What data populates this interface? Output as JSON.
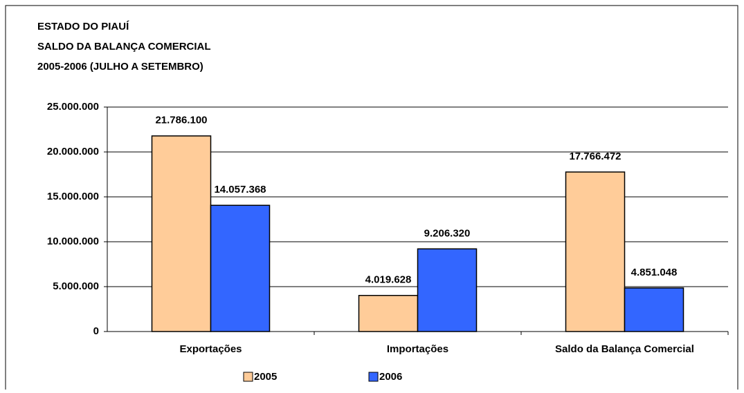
{
  "chart_data": {
    "type": "bar",
    "title": [
      "ESTADO DO PIAUÍ",
      "SALDO DA BALANÇA COMERCIAL",
      "2005-2006 (JULHO A SETEMBRO)"
    ],
    "categories": [
      "Exportações",
      "Importações",
      "Saldo da Balança Comercial"
    ],
    "series": [
      {
        "name": "2005",
        "color": "#ffcc99",
        "values": [
          21786100,
          4019628,
          17766472
        ],
        "value_labels": [
          "21.786.100",
          "4.019.628",
          "17.766.472"
        ]
      },
      {
        "name": "2006",
        "color": "#3366ff",
        "values": [
          14057368,
          9206320,
          4851048
        ],
        "value_labels": [
          "14.057.368",
          "9.206.320",
          "4.851.048"
        ]
      }
    ],
    "ylim": [
      0,
      25000000
    ],
    "yticks": [
      0,
      {
        "value": 5000000,
        "label": "5.000.000"
      },
      {
        "value": 10000000,
        "label": "10.000.000"
      },
      {
        "value": 15000000,
        "label": "15.000.000"
      },
      {
        "value": 20000000,
        "label": "20.000.000"
      },
      {
        "value": 25000000,
        "label": "25.000.000"
      }
    ],
    "grid": true
  }
}
